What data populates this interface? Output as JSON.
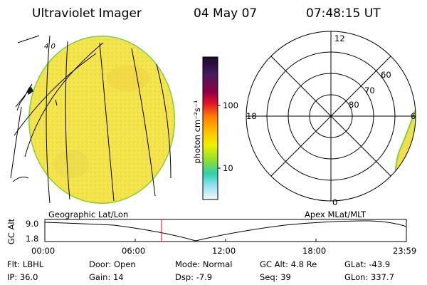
{
  "header": {
    "instrument": "Ultraviolet Imager",
    "date": "04 May 07",
    "time": "07:48:15 UT"
  },
  "globe": {
    "label": "4 0",
    "background_color": "#f2e850"
  },
  "colorbar": {
    "ticks": [
      "100",
      "10"
    ],
    "unit_label": "photon cm⁻²s⁻¹",
    "colors": [
      "#1a1030",
      "#4a1860",
      "#900040",
      "#e0002a",
      "#ff7f00",
      "#ffb000",
      "#ffe000",
      "#d8f000",
      "#90e030",
      "#40d8a0",
      "#20c8e0",
      "#90e0f0",
      "#ffffff"
    ]
  },
  "polar_plot": {
    "mlt_labels": {
      "top": "12",
      "left": "18",
      "right": "6",
      "bottom": "0"
    },
    "lat_labels": [
      "60",
      "70",
      "80"
    ]
  },
  "alt_plot": {
    "title_left": "Geographic Lat/Lon",
    "title_right": "Apex MLat/MLT",
    "ylabel": "GC Alt",
    "y_ticks": [
      "9.0",
      "1.8"
    ],
    "x_ticks": [
      "00:00",
      "06:00",
      "12:00",
      "18:00",
      "23:59"
    ],
    "current_marker_color": "#ff0000"
  },
  "info": {
    "row1": [
      {
        "label": "Flt:",
        "value": "LBHL"
      },
      {
        "label": "Door:",
        "value": "Open"
      },
      {
        "label": "Mode:",
        "value": "Normal"
      },
      {
        "label": "GC Alt:",
        "value": "4.8 Re"
      },
      {
        "label": "GLat:",
        "value": "-43.9"
      }
    ],
    "row2": [
      {
        "label": "IP:",
        "value": "36.0"
      },
      {
        "label": "Gain:",
        "value": "14"
      },
      {
        "label": "Dsp:",
        "value": "-7.9"
      },
      {
        "label": "Seq:",
        "value": "39"
      },
      {
        "label": "GLon:",
        "value": "337.7"
      }
    ]
  }
}
